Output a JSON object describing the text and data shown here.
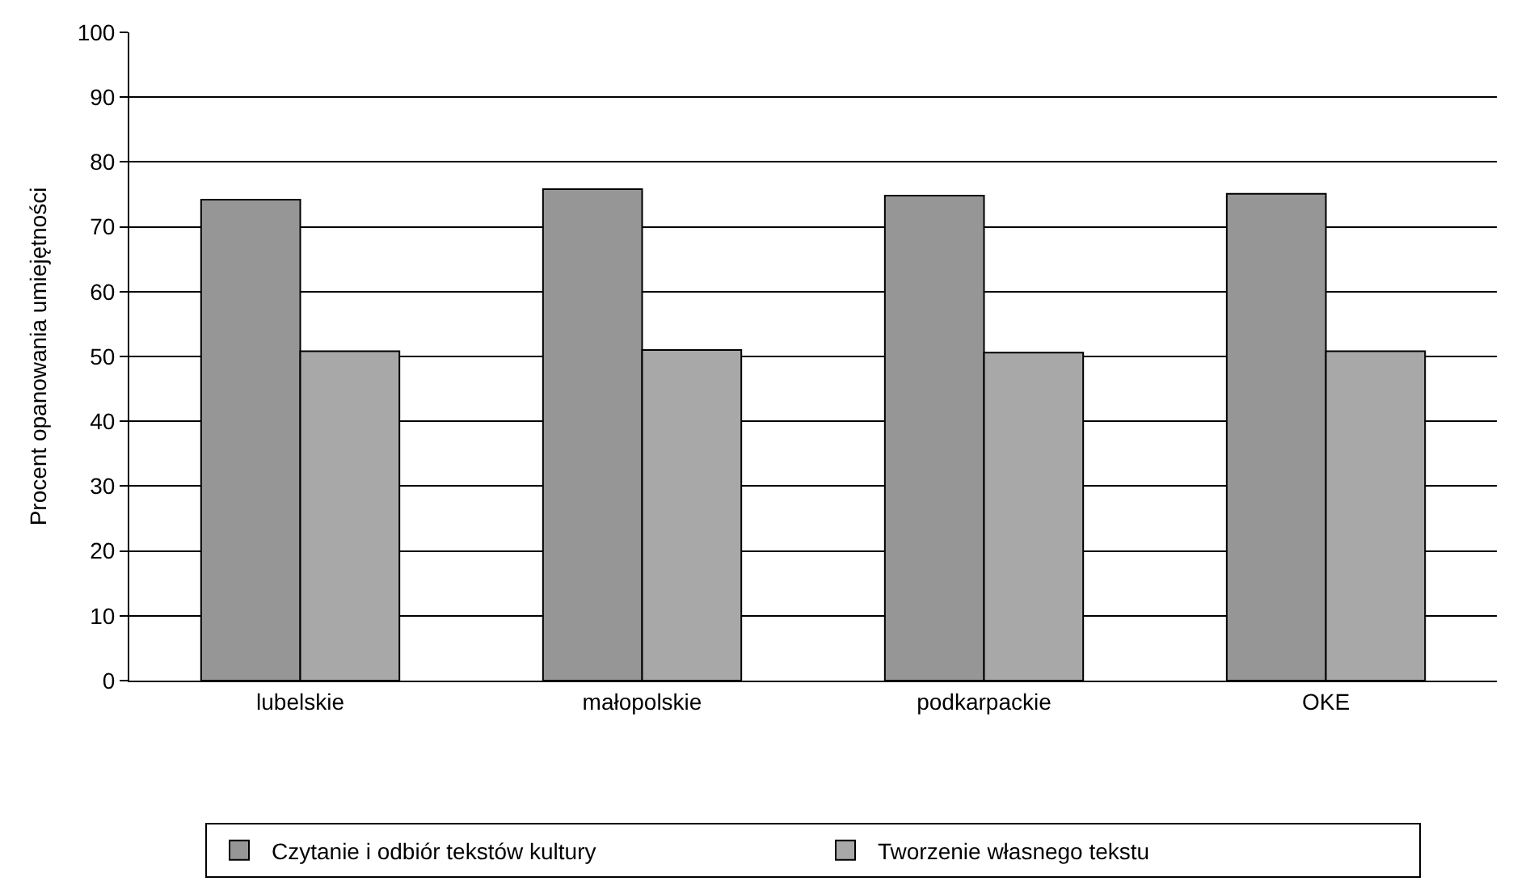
{
  "chart_data": {
    "type": "bar",
    "ylabel": "Procent opanowania umiejętności",
    "categories": [
      "lubelskie",
      "małopolskie",
      "podkarpackie",
      "OKE"
    ],
    "series": [
      {
        "name": "Czytanie i odbiór tekstów kultury",
        "color": "#969696",
        "values": [
          74.2,
          75.8,
          74.8,
          75.1
        ]
      },
      {
        "name": "Tworzenie własnego tekstu",
        "color": "#a8a8a8",
        "values": [
          50.8,
          51.0,
          50.6,
          50.8
        ]
      }
    ],
    "ylim": [
      0,
      100
    ],
    "yticks": [
      0,
      10,
      20,
      30,
      40,
      50,
      60,
      70,
      80,
      90,
      100
    ],
    "grid": "y",
    "legend": "bottom"
  }
}
